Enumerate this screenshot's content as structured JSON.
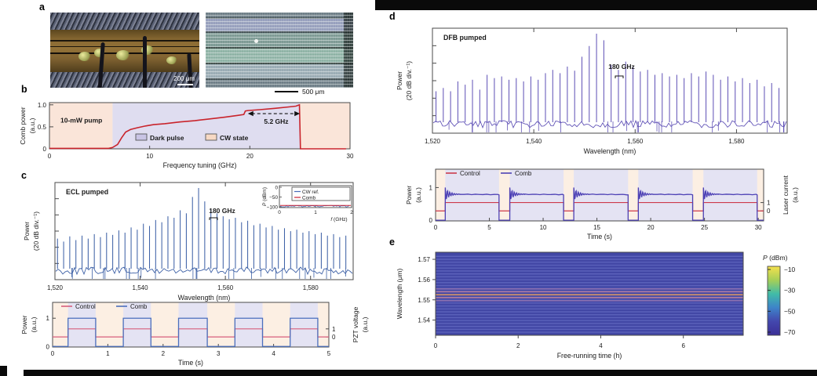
{
  "figure": {
    "panel_labels": {
      "a": "a",
      "b": "b",
      "c": "c",
      "d": "d",
      "e": "e"
    },
    "scale_bar_left": "200 μm",
    "scale_bar_right": "500 μm"
  },
  "chart_data": {
    "b": {
      "type": "line",
      "note": "10-mW pump",
      "xlabel": "Frequency tuning (GHz)",
      "ylabel_lines": [
        "Comb power",
        "(a.u.)"
      ],
      "xlim": [
        0,
        30
      ],
      "ylim": [
        0,
        1.05
      ],
      "xticks": [
        {
          "v": 0,
          "l": "0"
        },
        {
          "v": 10,
          "l": "10"
        },
        {
          "v": 20,
          "l": "20"
        },
        {
          "v": 30,
          "l": "30"
        }
      ],
      "yticks": [
        {
          "v": 0,
          "l": "0"
        },
        {
          "v": 0.5,
          "l": "0.5"
        },
        {
          "v": 1.0,
          "l": "1.0"
        }
      ],
      "regions": [
        {
          "x0": 0,
          "x1": 6.3,
          "kind": "cw"
        },
        {
          "x0": 6.3,
          "x1": 25.0,
          "kind": "dark"
        },
        {
          "x0": 25.0,
          "x1": 30,
          "kind": "cw"
        }
      ],
      "legend": [
        {
          "label": "Dark pulse",
          "kind": "dark"
        },
        {
          "label": "CW state",
          "kind": "cw"
        }
      ],
      "annotation": {
        "text": "5.2 GHz",
        "x0": 19.8,
        "x1": 25.0,
        "y": 0.8
      },
      "curve_color": "#c9242c",
      "points": [
        [
          0,
          0.01
        ],
        [
          5.9,
          0.01
        ],
        [
          6.3,
          0.03
        ],
        [
          6.8,
          0.1
        ],
        [
          7.2,
          0.25
        ],
        [
          7.6,
          0.38
        ],
        [
          8.1,
          0.44
        ],
        [
          8.8,
          0.48
        ],
        [
          9.6,
          0.52
        ],
        [
          10.4,
          0.55
        ],
        [
          11.5,
          0.57
        ],
        [
          13,
          0.61
        ],
        [
          14.5,
          0.64
        ],
        [
          16,
          0.68
        ],
        [
          17.5,
          0.72
        ],
        [
          18.8,
          0.76
        ],
        [
          19.4,
          0.78
        ],
        [
          19.55,
          0.86
        ],
        [
          19.8,
          0.87
        ],
        [
          21,
          0.89
        ],
        [
          22.5,
          0.92
        ],
        [
          23.8,
          0.95
        ],
        [
          24.6,
          0.97
        ],
        [
          24.95,
          1.0
        ],
        [
          25.05,
          0.0
        ],
        [
          29.6,
          0.0
        ]
      ]
    },
    "c_spec": {
      "type": "line",
      "note": "ECL pumped",
      "annotation": "180 GHz",
      "color": "#3f62a7",
      "xlabel": "Wavelength (nm)",
      "ylabel_lines": [
        "Power",
        "(20 dB div.⁻¹)"
      ],
      "xlim": [
        1520,
        1590
      ],
      "xticks": [
        {
          "v": 1520,
          "l": "1,520"
        },
        {
          "v": 1540,
          "l": "1,540"
        },
        {
          "v": 1560,
          "l": "1,560"
        },
        {
          "v": 1580,
          "l": "1,580"
        }
      ],
      "comb_spacing_ghz": 180,
      "wl_start": 1520.6,
      "wl_step": 1.44,
      "heights": [
        0.32,
        0.28,
        0.35,
        0.3,
        0.36,
        0.32,
        0.38,
        0.34,
        0.4,
        0.37,
        0.43,
        0.4,
        0.47,
        0.44,
        0.52,
        0.49,
        0.57,
        0.54,
        0.62,
        0.6,
        0.7,
        0.66,
        0.88,
        1.0,
        0.82,
        0.72,
        0.66,
        0.62,
        0.58,
        0.6,
        0.54,
        0.56,
        0.5,
        0.52,
        0.47,
        0.49,
        0.44,
        0.46,
        0.42,
        0.44,
        0.4,
        0.42,
        0.38,
        0.4,
        0.36,
        0.38,
        0.34,
        0.36
      ]
    },
    "c_inset": {
      "ylabel_italic": "P",
      "ylabel_rest": " (dBm)",
      "xlabel_italic": "f",
      "xlabel_rest": " (GHz)",
      "yticks": [
        {
          "v": 0,
          "l": "0"
        },
        {
          "v": -50,
          "l": "−50"
        },
        {
          "v": -100,
          "l": "−100"
        }
      ],
      "xticks": [
        {
          "v": 0,
          "l": "0"
        },
        {
          "v": 1,
          "l": "1"
        },
        {
          "v": 2,
          "l": "2"
        }
      ],
      "legend": [
        {
          "label": "CW ref.",
          "color": "#4a6cb8"
        },
        {
          "label": "Comb",
          "color": "#cc2233"
        }
      ],
      "cw_ref_level_dbm": -97,
      "comb_level_dbm": -93
    },
    "c_time": {
      "type": "line",
      "xlabel": "Time (s)",
      "ylabel_lines": [
        "Power",
        "(a.u.)"
      ],
      "ylabel_right_lines": [
        "PZT voltage",
        "(a.u.)"
      ],
      "xlim": [
        0,
        5
      ],
      "xticks": [
        {
          "v": 0,
          "l": "0"
        },
        {
          "v": 1,
          "l": "1"
        },
        {
          "v": 2,
          "l": "2"
        },
        {
          "v": 3,
          "l": "3"
        },
        {
          "v": 4,
          "l": "4"
        },
        {
          "v": 5,
          "l": "5"
        }
      ],
      "yticks": [
        {
          "v": 1.0,
          "l": "1"
        },
        {
          "v": 0.02,
          "l": "0"
        }
      ],
      "yticks_right": [
        {
          "v": 0.63,
          "l": "1"
        },
        {
          "v": 0.35,
          "l": "0"
        }
      ],
      "legend": [
        {
          "label": "Control",
          "color": "#d75f7d"
        },
        {
          "label": "Comb",
          "color": "#4b6fbd"
        }
      ],
      "on_intervals": [
        [
          0.28,
          0.78
        ],
        [
          1.28,
          1.78
        ],
        [
          2.28,
          2.8
        ],
        [
          3.3,
          3.8
        ],
        [
          4.3,
          4.8
        ]
      ],
      "comb_low": 0.02,
      "comb_high": 1.0,
      "control_low": 0.35,
      "control_high": 0.63
    },
    "d_spec": {
      "type": "line",
      "note": "DFB pumped",
      "annotation": "180 GHz",
      "color": "#6456b8",
      "xlabel": "Wavelength (nm)",
      "ylabel_lines": [
        "Power",
        "(20 dB div.⁻¹)"
      ],
      "xlim": [
        1520,
        1590
      ],
      "xticks": [
        {
          "v": 1520,
          "l": "1,520"
        },
        {
          "v": 1540,
          "l": "1,540"
        },
        {
          "v": 1560,
          "l": "1,560"
        },
        {
          "v": 1580,
          "l": "1,580"
        }
      ],
      "comb_spacing_ghz": 180,
      "wl_start": 1520.7,
      "wl_step": 1.44,
      "heights": [
        0.3,
        0.34,
        0.3,
        0.42,
        0.38,
        0.44,
        0.32,
        0.5,
        0.46,
        0.48,
        0.44,
        0.46,
        0.42,
        0.48,
        0.44,
        0.52,
        0.56,
        0.52,
        0.6,
        0.55,
        0.72,
        0.85,
        1.0,
        0.92,
        0.62,
        0.56,
        0.66,
        0.6,
        0.54,
        0.56,
        0.5,
        0.52,
        0.48,
        0.5,
        0.46,
        0.52,
        0.48,
        0.54,
        0.5,
        0.44,
        0.48,
        0.42,
        0.46,
        0.4,
        0.44,
        0.36,
        0.4,
        0.34
      ]
    },
    "d_time": {
      "type": "line",
      "xlabel": "Time (s)",
      "ylabel_lines": [
        "Power",
        "(a.u.)"
      ],
      "ylabel_right_lines": [
        "Laser current",
        "(a.u.)"
      ],
      "xlim": [
        0,
        30.5
      ],
      "xticks": [
        {
          "v": 0,
          "l": "0"
        },
        {
          "v": 5,
          "l": "5"
        },
        {
          "v": 10,
          "l": "10"
        },
        {
          "v": 15,
          "l": "15"
        },
        {
          "v": 20,
          "l": "20"
        },
        {
          "v": 25,
          "l": "25"
        },
        {
          "v": 30,
          "l": "30"
        }
      ],
      "yticks": [
        {
          "v": 1.0,
          "l": "1"
        },
        {
          "v": 0.02,
          "l": "0"
        }
      ],
      "yticks_right": [
        {
          "v": 0.55,
          "l": "1"
        },
        {
          "v": 0.3,
          "l": "0"
        }
      ],
      "legend": [
        {
          "label": "Control",
          "color": "#cc3a4c"
        },
        {
          "label": "Comb",
          "color": "#4d41b5"
        }
      ],
      "on_intervals": [
        [
          0.9,
          5.9
        ],
        [
          6.9,
          11.9
        ],
        [
          12.85,
          17.9
        ],
        [
          18.85,
          23.9
        ],
        [
          24.9,
          29.9
        ]
      ],
      "comb_low": 0.02,
      "comb_settle": 0.8,
      "ring_amp": 0.2,
      "control_low": 0.3,
      "control_high": 0.55
    },
    "e_heat": {
      "type": "heatmap",
      "xlabel": "Free-running time (h)",
      "ylabel": "Wavelength (μm)",
      "xlim": [
        0,
        7.45
      ],
      "ylim_um": [
        1.5325,
        1.5735
      ],
      "xticks": [
        {
          "v": 0,
          "l": "0"
        },
        {
          "v": 2,
          "l": "2"
        },
        {
          "v": 4,
          "l": "4"
        },
        {
          "v": 6,
          "l": "6"
        }
      ],
      "yticks": [
        {
          "v": 1.57,
          "l": "1.57"
        },
        {
          "v": 1.56,
          "l": "1.56"
        },
        {
          "v": 1.55,
          "l": "1.55"
        },
        {
          "v": 1.54,
          "l": "1.54"
        }
      ],
      "line_first_um": 1.534,
      "line_spacing_um": 0.00144,
      "line_count": 27,
      "base_color": "#4247a5",
      "line_color": "#5d63bc",
      "special_lines": [
        {
          "wl": 1.5496,
          "color": "#8a6fb0"
        },
        {
          "wl": 1.5511,
          "color": "#b27d9f"
        },
        {
          "wl": 1.5525,
          "color": "#d8935f"
        },
        {
          "wl": 1.554,
          "color": "#b27d9f"
        },
        {
          "wl": 1.5554,
          "color": "#8a6fb0"
        }
      ],
      "colorbar": {
        "title_italic": "P",
        "title_rest": " (dBm)",
        "ticks": [
          {
            "v": -10,
            "l": "−10"
          },
          {
            "v": -30,
            "l": "−30"
          },
          {
            "v": -50,
            "l": "−50"
          },
          {
            "v": -70,
            "l": "−70"
          }
        ],
        "range": [
          -10,
          -70
        ],
        "gradient_top_to_bottom": [
          "#f5e14d",
          "#a6cf57",
          "#40bba8",
          "#3e83c9",
          "#4347ad",
          "#3b2f96"
        ]
      }
    },
    "shared_colors": {
      "dark_region": "#e4e3f3",
      "cw_region": "#fcefe3",
      "b_dark_region": "#dfddf0",
      "b_cw_region": "#fae5d9"
    }
  }
}
